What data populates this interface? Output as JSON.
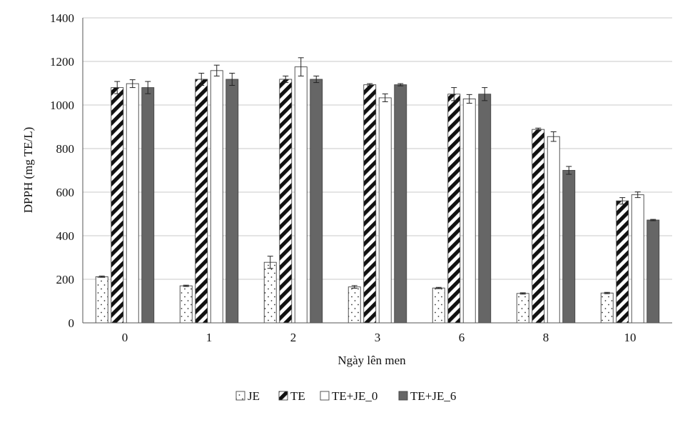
{
  "chart_data": {
    "type": "bar",
    "title": "",
    "xlabel": "Ngày lên men",
    "ylabel": "DPPH (mg TE/L)",
    "ylim": [
      0,
      1400
    ],
    "yticks": [
      0,
      200,
      400,
      600,
      800,
      1000,
      1200,
      1400
    ],
    "grid": true,
    "legend_position": "bottom",
    "categories": [
      "0",
      "1",
      "2",
      "3",
      "6",
      "8",
      "10"
    ],
    "series": [
      {
        "name": "JE",
        "pattern": "dots",
        "color": "#ffffff",
        "values": [
          212,
          170,
          278,
          165,
          160,
          135,
          137
        ],
        "errors": [
          3,
          3,
          28,
          6,
          3,
          3,
          3
        ]
      },
      {
        "name": "TE",
        "pattern": "diagonal-stripes",
        "color": "#111111",
        "values": [
          1080,
          1118,
          1118,
          1093,
          1050,
          888,
          560
        ],
        "errors": [
          28,
          28,
          15,
          5,
          30,
          6,
          15
        ]
      },
      {
        "name": "TE+JE_0",
        "pattern": "none",
        "color": "#ffffff",
        "values": [
          1098,
          1158,
          1175,
          1033,
          1028,
          855,
          588
        ],
        "errors": [
          18,
          25,
          42,
          18,
          20,
          22,
          13
        ]
      },
      {
        "name": "TE+JE_6",
        "pattern": "solid",
        "color": "#666666",
        "values": [
          1080,
          1118,
          1118,
          1093,
          1050,
          700,
          472
        ],
        "errors": [
          28,
          28,
          15,
          5,
          30,
          18,
          3
        ]
      }
    ]
  }
}
